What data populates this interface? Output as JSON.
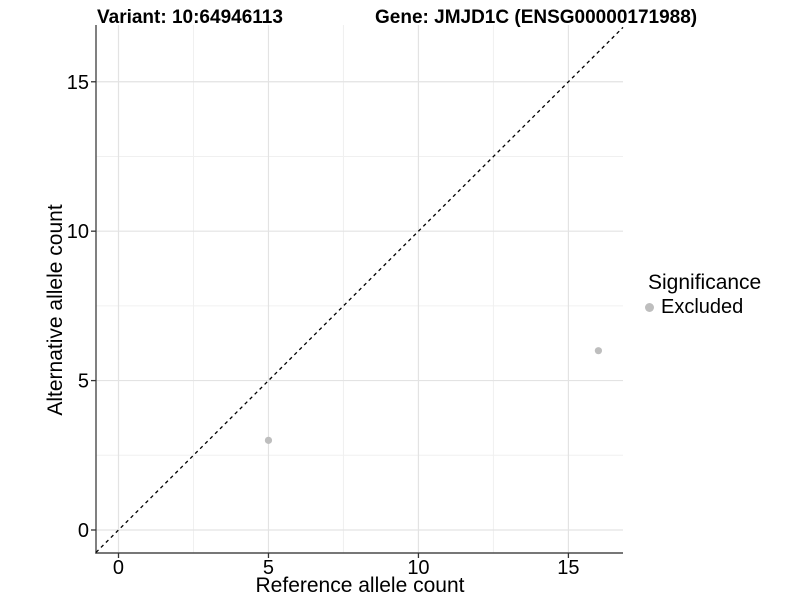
{
  "header": {
    "variant_title": "Variant: 10:64946113",
    "gene_title": "Gene: JMJD1C (ENSG00000171988)"
  },
  "chart_data": {
    "type": "scatter",
    "title": "Variant: 10:64946113 | Gene: JMJD1C (ENSG00000171988)",
    "xlabel": "Reference allele count",
    "ylabel": "Alternative allele count",
    "xlim": [
      -0.75,
      16.82
    ],
    "ylim": [
      -0.77,
      16.9
    ],
    "x_ticks": [
      0,
      5,
      10,
      15
    ],
    "y_ticks": [
      0,
      5,
      10,
      15
    ],
    "x_minor_ticks": [
      2.5,
      7.5,
      12.5
    ],
    "y_minor_ticks": [
      2.5,
      7.5,
      12.5
    ],
    "grid": "major and minor gridlines on white background",
    "identity_line": {
      "slope": 1,
      "intercept": 0,
      "style": "dashed",
      "color": "#000000"
    },
    "series": [
      {
        "name": "Excluded",
        "color": "#bebebe",
        "points": [
          {
            "x": 5,
            "y": 3
          },
          {
            "x": 16,
            "y": 6
          }
        ]
      }
    ],
    "legend": {
      "title": "Significance",
      "position": "right",
      "items": [
        {
          "label": "Excluded",
          "color": "#bebebe",
          "marker": "circle"
        }
      ]
    },
    "colors": {
      "background": "#ffffff",
      "axis_line": "#4a4a4a",
      "tick_mark": "#333333",
      "text": "#000000",
      "grid_major": "#e3e3e3",
      "grid_minor": "#f0f0f0"
    }
  }
}
